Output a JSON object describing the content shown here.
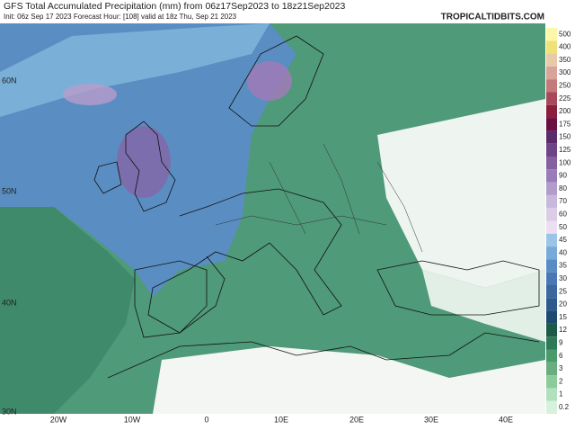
{
  "header": {
    "title": "GFS Total Accumulated Precipitation (mm) from 06z17Sep2023 to 18z21Sep2023",
    "subtitle": "Init: 06z Sep 17 2023   Forecast Hour: [108]   valid at 18z Thu, Sep 21 2023",
    "brand": "TROPICALTIDBITS.COM"
  },
  "colorbar": {
    "labels": [
      "500",
      "400",
      "350",
      "300",
      "250",
      "225",
      "200",
      "175",
      "150",
      "125",
      "100",
      "90",
      "80",
      "70",
      "60",
      "50",
      "45",
      "40",
      "35",
      "30",
      "25",
      "20",
      "15",
      "12",
      "9",
      "6",
      "3",
      "2",
      "1",
      "0.2"
    ],
    "colors": [
      "#fff7a8",
      "#f0e07a",
      "#e8c9a8",
      "#d8a49a",
      "#c27a7a",
      "#a8485a",
      "#8a1e3c",
      "#6a1040",
      "#5a2a6a",
      "#6e4488",
      "#8460a0",
      "#9a7cb8",
      "#b29ccc",
      "#c8b8dc",
      "#dccce8",
      "#ecdff2",
      "#9cc4e4",
      "#78aad8",
      "#5a8cc4",
      "#4a78b4",
      "#3c68a0",
      "#2e5a8c",
      "#1e4a72",
      "#1e5a48",
      "#2e7a58",
      "#4a9a6c",
      "#6aae80",
      "#8ccc9a",
      "#b0e0bc",
      "#d6f2dc"
    ]
  },
  "axes": {
    "lon": [
      "20W",
      "10W",
      "0",
      "10E",
      "20E",
      "30E",
      "40E"
    ],
    "lat": [
      "60N",
      "50N",
      "40N",
      "30N"
    ]
  }
}
